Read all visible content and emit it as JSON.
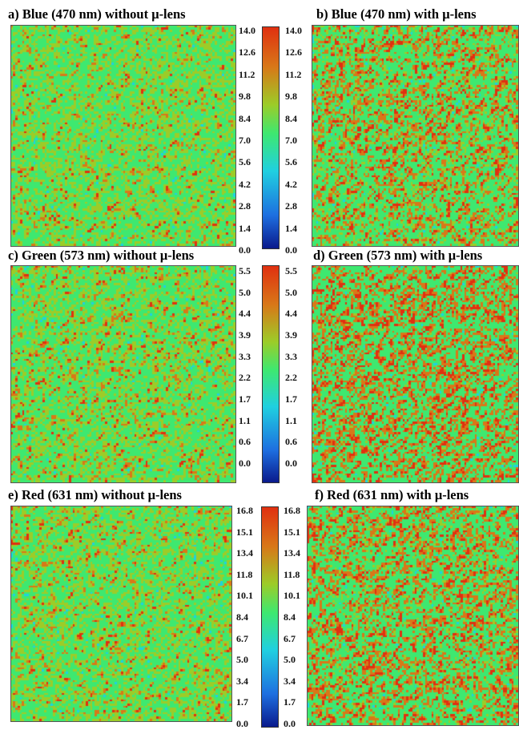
{
  "chart_data": [
    {
      "type": "heatmap",
      "id": "a",
      "title": "a) Blue (470 nm) without μ-lens",
      "colorbar": {
        "ticks": [
          "14.0",
          "12.6",
          "11.2",
          "9.8",
          "8.4",
          "7.0",
          "5.6",
          "4.2",
          "2.8",
          "1.4",
          "0.0"
        ],
        "range": [
          0.0,
          14.0
        ]
      },
      "grid": [
        100,
        100
      ],
      "dominant_level": 0.5,
      "red_fraction": 0.35
    },
    {
      "type": "heatmap",
      "id": "b",
      "title": "b) Blue (470 nm) with μ-lens",
      "colorbar": {
        "ticks": [
          "14.0",
          "12.6",
          "11.2",
          "9.8",
          "8.4",
          "7.0",
          "5.6",
          "4.2",
          "2.8",
          "1.4",
          "0.0"
        ],
        "range": [
          0.0,
          14.0
        ]
      },
      "grid": [
        100,
        100
      ],
      "dominant_level": 0.55,
      "red_fraction": 0.55
    },
    {
      "type": "heatmap",
      "id": "c",
      "title": "c) Green (573 nm) without μ-lens",
      "colorbar": {
        "ticks": [
          "5.5",
          "5.0",
          "4.4",
          "3.9",
          "3.3",
          "2.2",
          "1.7",
          "1.1",
          "0.6",
          "0.0"
        ],
        "range": [
          0.0,
          5.5
        ]
      },
      "grid": [
        100,
        100
      ],
      "dominant_level": 0.5,
      "red_fraction": 0.38
    },
    {
      "type": "heatmap",
      "id": "d",
      "title": "d) Green (573 nm) with μ-lens",
      "colorbar": {
        "ticks": [
          "5.5",
          "5.0",
          "4.4",
          "3.9",
          "3.3",
          "2.2",
          "1.7",
          "1.1",
          "0.6",
          "0.0"
        ],
        "range": [
          0.0,
          5.5
        ]
      },
      "grid": [
        100,
        100
      ],
      "dominant_level": 0.58,
      "red_fraction": 0.62
    },
    {
      "type": "heatmap",
      "id": "e",
      "title": "e) Red (631 nm) without μ-lens",
      "colorbar": {
        "ticks": [
          "16.8",
          "15.1",
          "13.4",
          "11.8",
          "10.1",
          "8.4",
          "6.7",
          "5.0",
          "3.4",
          "1.7",
          "0.0"
        ],
        "range": [
          0.0,
          16.8
        ]
      },
      "grid": [
        100,
        100
      ],
      "dominant_level": 0.5,
      "red_fraction": 0.36
    },
    {
      "type": "heatmap",
      "id": "f",
      "title": "f) Red (631 nm) with μ-lens",
      "colorbar": {
        "ticks": [
          "16.8",
          "15.1",
          "13.4",
          "11.8",
          "10.1",
          "8.4",
          "6.7",
          "5.0",
          "3.4",
          "1.7",
          "0.0"
        ],
        "range": [
          0.0,
          16.8
        ]
      },
      "grid": [
        100,
        100
      ],
      "dominant_level": 0.57,
      "red_fraction": 0.58
    }
  ],
  "colors": {
    "low": "#0a1a8c",
    "blue": "#1e6fe0",
    "cyan": "#20d0e0",
    "green": "#3ee870",
    "yellowgreen": "#9ccc28",
    "orange": "#d87818",
    "high": "#e03010"
  }
}
